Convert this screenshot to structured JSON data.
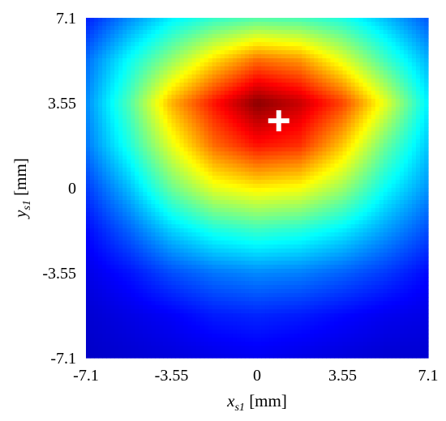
{
  "chart_data": {
    "type": "heatmap",
    "title": "",
    "colormap": "jet",
    "xlabel": {
      "var": "x",
      "sub": "s1",
      "unit": " [mm]"
    },
    "ylabel": {
      "var": "y",
      "sub": "s1",
      "unit": " [mm]"
    },
    "xlim": [
      -7.1,
      7.1
    ],
    "ylim": [
      -7.1,
      7.1
    ],
    "xticks": [
      "-7.1",
      "-3.55",
      "0",
      "3.55",
      "7.1"
    ],
    "yticks": [
      "7.1",
      "3.55",
      "0",
      "-3.55",
      "-7.1"
    ],
    "x": [
      -7.1,
      -5.325,
      -3.55,
      -1.775,
      0,
      1.775,
      3.55,
      5.325,
      7.1
    ],
    "y": [
      7.1,
      5.325,
      3.55,
      1.775,
      0,
      -1.775,
      -3.55,
      -5.325,
      -7.1
    ],
    "values": [
      [
        0.15,
        0.26,
        0.36,
        0.42,
        0.45,
        0.44,
        0.4,
        0.31,
        0.21
      ],
      [
        0.23,
        0.38,
        0.52,
        0.66,
        0.77,
        0.73,
        0.6,
        0.44,
        0.3
      ],
      [
        0.26,
        0.45,
        0.7,
        0.86,
        0.99,
        0.93,
        0.81,
        0.6,
        0.36
      ],
      [
        0.24,
        0.4,
        0.6,
        0.77,
        0.86,
        0.83,
        0.68,
        0.48,
        0.32
      ],
      [
        0.18,
        0.31,
        0.48,
        0.6,
        0.64,
        0.62,
        0.53,
        0.38,
        0.27
      ],
      [
        0.13,
        0.22,
        0.33,
        0.4,
        0.43,
        0.41,
        0.36,
        0.28,
        0.2
      ],
      [
        0.1,
        0.14,
        0.2,
        0.24,
        0.26,
        0.25,
        0.22,
        0.18,
        0.13
      ],
      [
        0.08,
        0.1,
        0.12,
        0.15,
        0.16,
        0.15,
        0.13,
        0.11,
        0.1
      ],
      [
        0.07,
        0.08,
        0.09,
        0.1,
        0.11,
        0.1,
        0.09,
        0.08,
        0.08
      ]
    ],
    "marker": {
      "x": 0.9,
      "y": 2.8,
      "symbol": "+",
      "color": "#ffffff"
    }
  }
}
